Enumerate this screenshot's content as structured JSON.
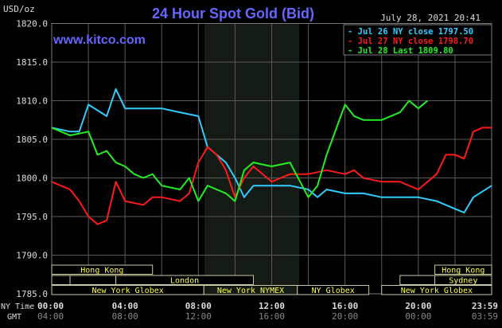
{
  "chart_data": {
    "type": "line",
    "title": "24 Hour Spot Gold (Bid)",
    "watermark": "www.kitco.com",
    "timestamp": "July 28, 2021 20:41",
    "ylabel": "USD/oz",
    "ylim": [
      1785,
      1820
    ],
    "yticks": [
      "1820.0",
      "1815.0",
      "1810.0",
      "1805.0",
      "1800.0",
      "1795.0",
      "1790.0",
      "1785.0"
    ],
    "ytick_values": [
      1820,
      1815,
      1810,
      1805,
      1800,
      1795,
      1790,
      1785
    ],
    "xlim_hours": [
      0,
      24
    ],
    "x_row_labels": {
      "ny": "NY Time",
      "gmt": "GMT"
    },
    "xticks_ny": [
      "00:00",
      "04:00",
      "08:00",
      "12:00",
      "16:00",
      "20:00",
      "23:59"
    ],
    "xticks_gmt": [
      "04:00",
      "08:00",
      "12:00",
      "16:00",
      "20:00",
      "00:00",
      "03:59"
    ],
    "xtick_hours": [
      0,
      4,
      8,
      12,
      16,
      20,
      24
    ],
    "grid": true,
    "shaded_hours": [
      8.33,
      13.5
    ],
    "legend_position": "top-right",
    "series": [
      {
        "name": "Jul 26 NY close 1797.50",
        "color": "#33ccff",
        "x": [
          0,
          1,
          1.5,
          2,
          3,
          3.5,
          4,
          5,
          6,
          7,
          8,
          8.5,
          9,
          9.5,
          10,
          10.5,
          11,
          12,
          13,
          14,
          14.5,
          15,
          16,
          17,
          18,
          19,
          20,
          21,
          22,
          22.5,
          23,
          24
        ],
        "y": [
          1806.5,
          1806,
          1806,
          1809.5,
          1808,
          1811.5,
          1809,
          1809,
          1809,
          1808.5,
          1808,
          1804,
          1803,
          1802,
          1800,
          1797.5,
          1799,
          1799,
          1799,
          1798.5,
          1797.5,
          1798.5,
          1798,
          1798,
          1797.5,
          1797.5,
          1797.5,
          1797,
          1796,
          1795.5,
          1797.5,
          1799
        ]
      },
      {
        "name": "Jul 27 NY close 1798.70",
        "color": "#ff1a1a",
        "x": [
          0,
          1,
          1.5,
          2,
          2.5,
          3,
          3.5,
          4,
          5,
          5.5,
          6,
          7,
          7.5,
          8,
          8.5,
          9,
          9.5,
          10,
          10.5,
          11,
          12,
          13,
          14,
          15,
          16,
          16.5,
          17,
          18,
          19,
          20,
          21,
          21.5,
          22,
          22.5,
          23,
          23.5,
          24
        ],
        "y": [
          1799.5,
          1798.5,
          1797,
          1795,
          1794,
          1794.5,
          1799.5,
          1797,
          1796.5,
          1797.5,
          1797.5,
          1797,
          1798,
          1802,
          1804,
          1803,
          1801,
          1797.5,
          1800,
          1801.5,
          1799.5,
          1800.5,
          1800.5,
          1801,
          1800.5,
          1801,
          1800,
          1799.5,
          1799.5,
          1798.5,
          1800.5,
          1803,
          1803,
          1802.5,
          1806,
          1806.5,
          1806.5
        ]
      },
      {
        "name": "Jul 28 Last 1809.80",
        "color": "#22ee22",
        "x": [
          0,
          1,
          2,
          2.5,
          3,
          3.5,
          4,
          4.5,
          5,
          5.5,
          6,
          7,
          7.5,
          8,
          8.5,
          9,
          9.5,
          10,
          10.5,
          11,
          12,
          13,
          14,
          14.5,
          15,
          16,
          16.5,
          17,
          18,
          19,
          19.5,
          20,
          20.5
        ],
        "y": [
          1806.5,
          1805.5,
          1806,
          1803,
          1803.5,
          1802,
          1801.5,
          1800.5,
          1800,
          1800.5,
          1799,
          1798.5,
          1800,
          1797,
          1799,
          1798.5,
          1798,
          1797,
          1801,
          1802,
          1801.5,
          1802,
          1797.5,
          1799,
          1803,
          1809.5,
          1808,
          1807.5,
          1807.5,
          1808.5,
          1810,
          1809,
          1810
        ]
      }
    ],
    "sessions": [
      {
        "label": "Hong Kong",
        "row": 0,
        "start": 0,
        "end": 5.5
      },
      {
        "label": "Hong Kong",
        "row": 0,
        "start": 20.9,
        "end": 24
      },
      {
        "label": "",
        "row": 1,
        "start": 0,
        "end": 1
      },
      {
        "label": "",
        "row": 1,
        "start": 1,
        "end": 3.5
      },
      {
        "label": "London",
        "row": 1,
        "start": 3.5,
        "end": 11
      },
      {
        "label": "",
        "row": 1,
        "start": 19,
        "end": 20.9
      },
      {
        "label": "Sydney",
        "row": 1,
        "start": 20.9,
        "end": 24
      },
      {
        "label": "New York Globex",
        "row": 2,
        "start": 0,
        "end": 8.3
      },
      {
        "label": "New York NYMEX",
        "row": 2,
        "start": 8.3,
        "end": 13.4
      },
      {
        "label": "NY Globex",
        "row": 2,
        "start": 13.4,
        "end": 17.3
      },
      {
        "label": "New York Globex",
        "row": 2,
        "start": 18,
        "end": 24
      }
    ],
    "colors": {
      "background": "#000000",
      "title": "#6666ff",
      "grid": "#5a5a5a",
      "session_border": "#c8c8a0",
      "session_text": "#ffff44",
      "shade": "#141a14"
    }
  }
}
